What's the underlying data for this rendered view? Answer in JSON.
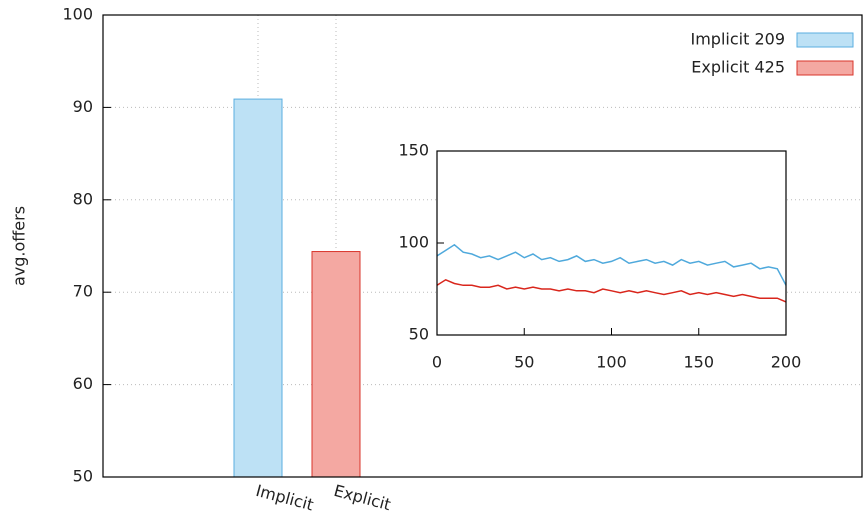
{
  "chart_data": [
    {
      "type": "bar",
      "ylabel": "avg.offers",
      "categories": [
        "Implicit",
        "Explicit"
      ],
      "series": [
        {
          "name": "Implicit 209",
          "color": "#bde1f5",
          "edge": "#5aaee0",
          "values": [
            90.9,
            null
          ]
        },
        {
          "name": "Explicit 425",
          "color": "#f4a8a2",
          "edge": "#d9352b",
          "values": [
            null,
            74.4
          ]
        }
      ],
      "ylim": [
        50,
        100
      ],
      "yticks": [
        50,
        60,
        70,
        80,
        90,
        100
      ],
      "grid": true,
      "legend": "top-right"
    },
    {
      "type": "line",
      "x": [
        0,
        5,
        10,
        15,
        20,
        25,
        30,
        35,
        40,
        45,
        50,
        55,
        60,
        65,
        70,
        75,
        80,
        85,
        90,
        95,
        100,
        105,
        110,
        115,
        120,
        125,
        130,
        135,
        140,
        145,
        150,
        155,
        160,
        165,
        170,
        175,
        180,
        185,
        190,
        195,
        200
      ],
      "series": [
        {
          "name": null,
          "color": "#4fa9dc",
          "values": [
            93,
            96,
            99,
            95,
            94,
            92,
            93,
            91,
            93,
            95,
            92,
            94,
            91,
            92,
            90,
            91,
            93,
            90,
            91,
            89,
            90,
            92,
            89,
            90,
            91,
            89,
            90,
            88,
            91,
            89,
            90,
            88,
            89,
            90,
            87,
            88,
            89,
            86,
            87,
            86,
            77
          ]
        },
        {
          "name": null,
          "color": "#d9261c",
          "values": [
            77,
            80,
            78,
            77,
            77,
            76,
            76,
            77,
            75,
            76,
            75,
            76,
            75,
            75,
            74,
            75,
            74,
            74,
            73,
            75,
            74,
            73,
            74,
            73,
            74,
            73,
            72,
            73,
            74,
            72,
            73,
            72,
            73,
            72,
            71,
            72,
            71,
            70,
            70,
            70,
            68
          ]
        }
      ],
      "xlim": [
        0,
        200
      ],
      "xticks": [
        0,
        50,
        100,
        150,
        200
      ],
      "ylim": [
        50,
        150
      ],
      "yticks": [
        50,
        100,
        150
      ]
    }
  ]
}
